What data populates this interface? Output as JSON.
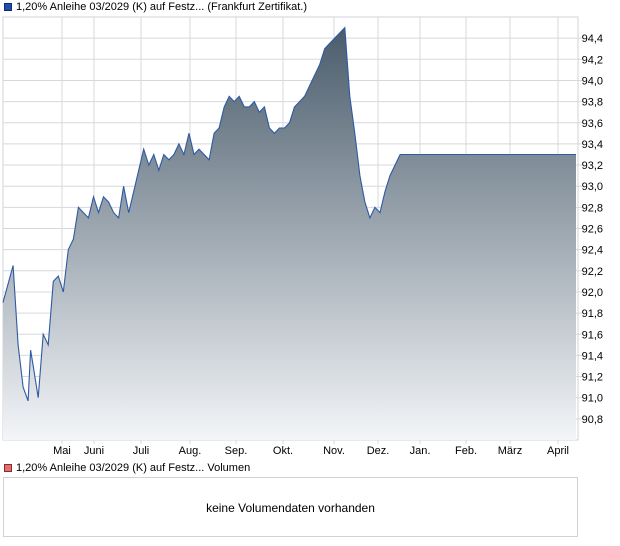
{
  "legend": {
    "price_label": "1,20% Anleihe 03/2029 (K) auf Festz... (Frankfurt Zertifikat.)",
    "volume_label": "1,20% Anleihe 03/2029 (K) auf Festz... Volumen"
  },
  "volume_panel": {
    "message": "keine Volumendaten vorhanden"
  },
  "colors": {
    "line": "#2e5aa3",
    "fill_top": "#4a5c6b",
    "fill_bottom": "#f3f5f8",
    "grid": "#d5d9de",
    "frame": "#cfd3d8"
  },
  "chart_data": {
    "type": "area",
    "title": "",
    "xlabel": "",
    "ylabel": "",
    "ylim": [
      90.6,
      94.6
    ],
    "y_ticks": [
      90.8,
      91.0,
      91.2,
      91.4,
      91.6,
      91.8,
      92.0,
      92.2,
      92.4,
      92.6,
      92.8,
      93.0,
      93.2,
      93.4,
      93.6,
      93.8,
      94.0,
      94.2,
      94.4
    ],
    "y_tick_labels": [
      "90,8",
      "91,0",
      "91,2",
      "91,4",
      "91,6",
      "91,8",
      "92,0",
      "92,2",
      "92,4",
      "92,6",
      "92,8",
      "93,0",
      "93,2",
      "93,4",
      "93,6",
      "93,8",
      "94,0",
      "94,2",
      "94,4"
    ],
    "x_ticks": [
      "Mai",
      "Juni",
      "Juli",
      "Aug.",
      "Sep.",
      "Okt.",
      "Nov.",
      "Dez.",
      "Jan.",
      "Feb.",
      "März",
      "April"
    ],
    "grid": true,
    "legend_position": "top-left",
    "series": [
      {
        "x": [
          0,
          0.2,
          0.3,
          0.4,
          0.5,
          0.55,
          0.6,
          0.7,
          0.8,
          0.9,
          1.0,
          1.1,
          1.2,
          1.3,
          1.4,
          1.5,
          1.6,
          1.7,
          1.8,
          1.9,
          2.0,
          2.1,
          2.2,
          2.3,
          2.4,
          2.5,
          2.6,
          2.7,
          2.8,
          2.9,
          3.0,
          3.1,
          3.2,
          3.3,
          3.4,
          3.5,
          3.6,
          3.7,
          3.8,
          3.9,
          4.0,
          4.1,
          4.2,
          4.3,
          4.4,
          4.5,
          4.6,
          4.7,
          4.8,
          4.9,
          5.0,
          5.1,
          5.2,
          5.3,
          5.4,
          5.5,
          5.6,
          5.7,
          5.8,
          5.9,
          6.0,
          6.1,
          6.2,
          6.3,
          6.4,
          6.5,
          6.6,
          6.7,
          6.8,
          6.9,
          7.0,
          7.1,
          7.2,
          7.3,
          7.4,
          7.5,
          7.6,
          7.7,
          7.8,
          7.9,
          8.0,
          8.1,
          8.2,
          8.3,
          8.4,
          8.5,
          8.6,
          8.7,
          8.8,
          8.9,
          9.0,
          9.1,
          9.2,
          9.3,
          9.4,
          9.5,
          9.6,
          9.7,
          9.8,
          9.9,
          10.0,
          10.1,
          10.2,
          10.3,
          10.4,
          10.5,
          10.6,
          10.7,
          10.8,
          10.9,
          11.0,
          11.1,
          11.2,
          11.3,
          11.4
        ],
        "values": [
          91.9,
          92.25,
          91.5,
          91.1,
          90.97,
          91.45,
          91.3,
          91.0,
          91.6,
          91.5,
          92.1,
          92.15,
          92.0,
          92.4,
          92.5,
          92.8,
          92.75,
          92.7,
          92.9,
          92.75,
          92.9,
          92.85,
          92.75,
          92.7,
          93.0,
          92.75,
          92.95,
          93.15,
          93.35,
          93.2,
          93.3,
          93.15,
          93.3,
          93.25,
          93.3,
          93.4,
          93.3,
          93.5,
          93.3,
          93.35,
          93.3,
          93.25,
          93.5,
          93.55,
          93.75,
          93.85,
          93.8,
          93.85,
          93.75,
          93.75,
          93.8,
          93.7,
          93.75,
          93.55,
          93.5,
          93.55,
          93.55,
          93.6,
          93.75,
          93.8,
          93.85,
          93.95,
          94.05,
          94.15,
          94.3,
          94.35,
          94.4,
          94.45,
          94.5,
          93.85,
          93.5,
          93.1,
          92.85,
          92.7,
          92.8,
          92.75,
          92.95,
          93.1,
          93.2,
          93.3,
          93.3,
          93.3,
          93.3,
          93.3,
          93.3,
          93.3,
          93.3,
          93.3,
          93.3,
          93.3,
          93.3,
          93.3,
          93.3,
          93.3,
          93.3,
          93.3,
          93.3,
          93.3,
          93.3,
          93.3,
          93.3,
          93.3,
          93.3,
          93.3,
          93.3,
          93.3,
          93.3,
          93.3,
          93.3,
          93.3,
          93.3,
          93.3,
          93.3,
          93.3,
          93.3
        ]
      }
    ]
  }
}
